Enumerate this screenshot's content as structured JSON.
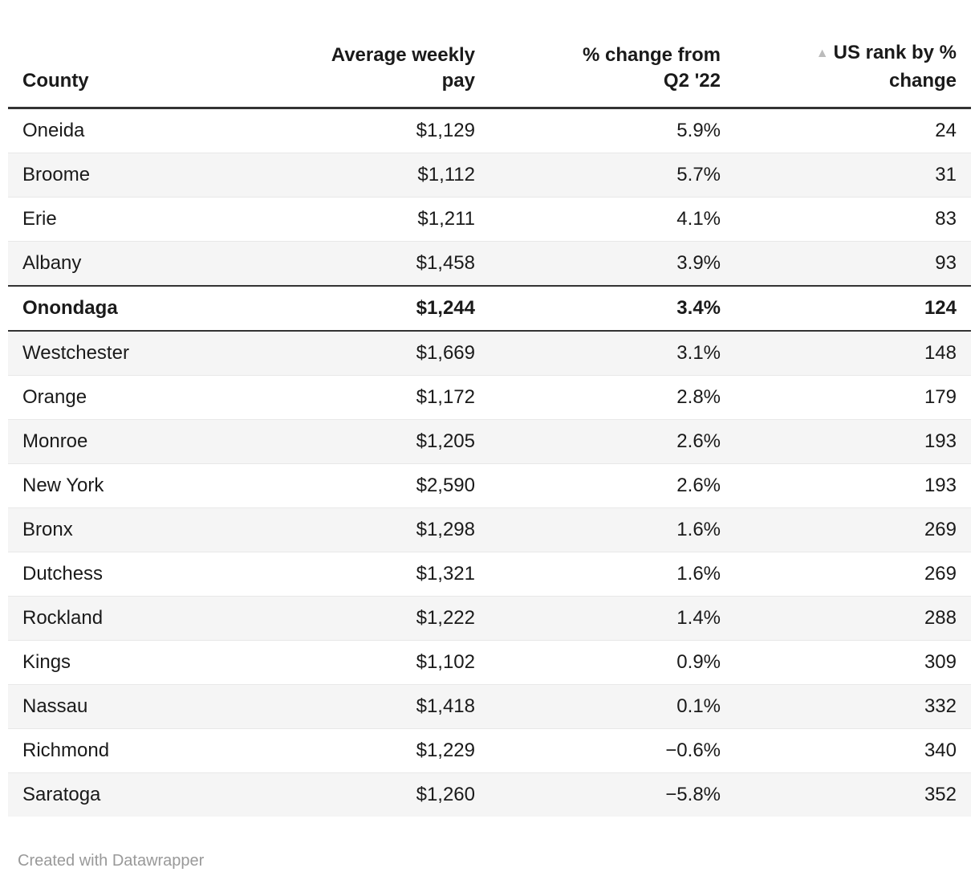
{
  "chart_data": {
    "type": "table",
    "title": "",
    "columns": [
      "County",
      "Average weekly pay",
      "% change from Q2 '22",
      "US rank by % change"
    ],
    "sort": {
      "column": "US rank by % change",
      "direction": "ascending"
    },
    "rows": [
      {
        "county": "Oneida",
        "pay": "$1,129",
        "change": "5.9%",
        "rank": "24",
        "highlight": false
      },
      {
        "county": "Broome",
        "pay": "$1,112",
        "change": "5.7%",
        "rank": "31",
        "highlight": false
      },
      {
        "county": "Erie",
        "pay": "$1,211",
        "change": "4.1%",
        "rank": "83",
        "highlight": false
      },
      {
        "county": "Albany",
        "pay": "$1,458",
        "change": "3.9%",
        "rank": "93",
        "highlight": false
      },
      {
        "county": "Onondaga",
        "pay": "$1,244",
        "change": "3.4%",
        "rank": "124",
        "highlight": true
      },
      {
        "county": "Westchester",
        "pay": "$1,669",
        "change": "3.1%",
        "rank": "148",
        "highlight": false
      },
      {
        "county": "Orange",
        "pay": "$1,172",
        "change": "2.8%",
        "rank": "179",
        "highlight": false
      },
      {
        "county": "Monroe",
        "pay": "$1,205",
        "change": "2.6%",
        "rank": "193",
        "highlight": false
      },
      {
        "county": "New York",
        "pay": "$2,590",
        "change": "2.6%",
        "rank": "193",
        "highlight": false
      },
      {
        "county": "Bronx",
        "pay": "$1,298",
        "change": "1.6%",
        "rank": "269",
        "highlight": false
      },
      {
        "county": "Dutchess",
        "pay": "$1,321",
        "change": "1.6%",
        "rank": "269",
        "highlight": false
      },
      {
        "county": "Rockland",
        "pay": "$1,222",
        "change": "1.4%",
        "rank": "288",
        "highlight": false
      },
      {
        "county": "Kings",
        "pay": "$1,102",
        "change": "0.9%",
        "rank": "309",
        "highlight": false
      },
      {
        "county": "Nassau",
        "pay": "$1,418",
        "change": "0.1%",
        "rank": "332",
        "highlight": false
      },
      {
        "county": "Richmond",
        "pay": "$1,229",
        "change": "−0.6%",
        "rank": "340",
        "highlight": false
      },
      {
        "county": "Saratoga",
        "pay": "$1,260",
        "change": "−5.8%",
        "rank": "352",
        "highlight": false
      }
    ]
  },
  "header": {
    "county": "County",
    "pay_line1": "Average weekly",
    "pay_line2": "pay",
    "change_line1": "% change from",
    "change_line2": "Q2 '22",
    "rank_line1": "US rank by %",
    "rank_line2": "change",
    "sort_icon": "▲"
  },
  "footer": {
    "credit": "Created with Datawrapper"
  },
  "colors": {
    "text": "#1a1a1a",
    "row_stripe": "#f5f5f5",
    "border_dark": "#333333",
    "row_divider": "#e8e8e8",
    "sort_icon": "#bbbbbb",
    "footer_text": "#999999"
  }
}
